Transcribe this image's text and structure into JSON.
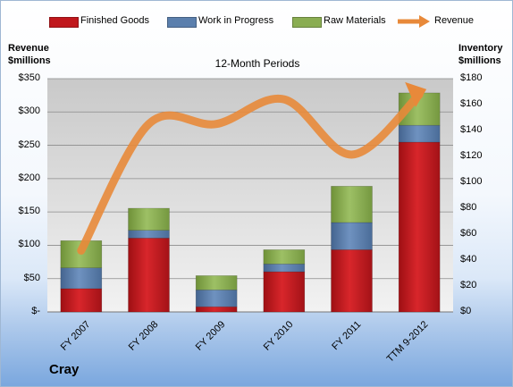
{
  "legend": [
    {
      "label": "Finished Goods",
      "color": "#c0171c"
    },
    {
      "label": "Work in Progress",
      "color": "#5b7fad"
    },
    {
      "label": "Raw Materials",
      "color": "#8aad52"
    },
    {
      "label": "Revenue",
      "color": "#e8893a"
    }
  ],
  "left_axis_title": [
    "Revenue",
    "$millions"
  ],
  "right_axis_title": [
    "Inventory",
    "$millions"
  ],
  "subtitle": "12-Month Periods",
  "company": "Cray",
  "chart_data": {
    "type": "bar",
    "stacked": true,
    "title": "12-Month Periods",
    "categories": [
      "FY 2007",
      "FY 2008",
      "FY 2009",
      "FY 2010",
      "FY 2011",
      "TTM 9-2012"
    ],
    "left_axis": {
      "label": "Revenue $millions",
      "min": 0,
      "max": 350,
      "ticks": [
        "$-",
        "$50",
        "$100",
        "$150",
        "$200",
        "$250",
        "$300",
        "$350"
      ],
      "tick_values": [
        0,
        50,
        100,
        150,
        200,
        250,
        300,
        350
      ]
    },
    "right_axis": {
      "label": "Inventory $millions",
      "min": 0,
      "max": 180,
      "ticks": [
        "$0",
        "$20",
        "$40",
        "$60",
        "$80",
        "$100",
        "$120",
        "$140",
        "$160",
        "$180"
      ],
      "tick_values": [
        0,
        20,
        40,
        60,
        80,
        100,
        120,
        140,
        160,
        180
      ]
    },
    "series": [
      {
        "name": "Finished Goods",
        "axis": "right",
        "type": "bar",
        "color": "#c0171c",
        "values": [
          18,
          57,
          4,
          31,
          48,
          131
        ]
      },
      {
        "name": "Work in Progress",
        "axis": "right",
        "type": "bar",
        "color": "#5b7fad",
        "values": [
          16,
          6,
          13,
          6,
          21,
          13
        ]
      },
      {
        "name": "Raw Materials",
        "axis": "right",
        "type": "bar",
        "color": "#8aad52",
        "values": [
          21,
          17,
          11,
          11,
          28,
          25
        ]
      },
      {
        "name": "Revenue",
        "axis": "left",
        "type": "line",
        "color": "#e8893a",
        "values": [
          92,
          282,
          282,
          319,
          236,
          326
        ]
      }
    ],
    "grid": true,
    "legend_position": "top"
  }
}
